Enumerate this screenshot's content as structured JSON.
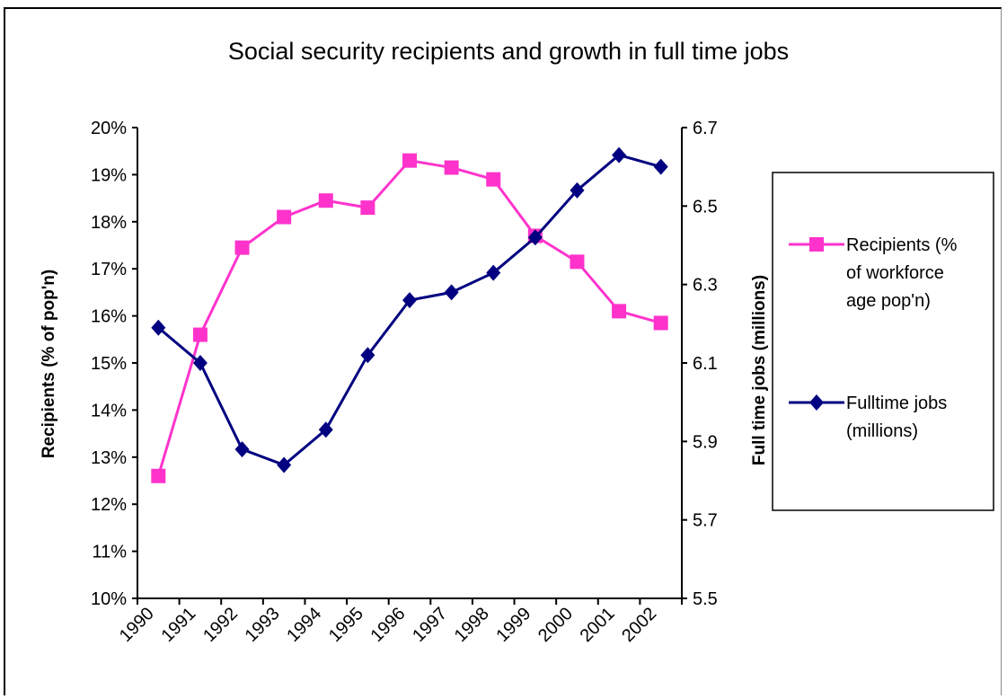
{
  "chart_data": {
    "type": "line",
    "title": "Social security recipients and growth in full time jobs",
    "x": [
      "1990",
      "1991",
      "1992",
      "1993",
      "1994",
      "1995",
      "1996",
      "1997",
      "1998",
      "1999",
      "2000",
      "2001",
      "2002"
    ],
    "y_left": {
      "label": "Recipients (% of pop'n)",
      "ticks": [
        "10%",
        "11%",
        "12%",
        "13%",
        "14%",
        "15%",
        "16%",
        "17%",
        "18%",
        "19%",
        "20%"
      ],
      "range": [
        10,
        20
      ]
    },
    "y_right": {
      "label": "Full time jobs (millions)",
      "ticks": [
        "5.5",
        "5.7",
        "5.9",
        "6.1",
        "6.3",
        "6.5",
        "6.7"
      ],
      "range": [
        5.5,
        6.7
      ]
    },
    "series": [
      {
        "name": "Recipients (% of workforce age pop'n)",
        "legend_lines": [
          "Recipients (%",
          "of workforce",
          "age pop'n)"
        ],
        "axis": "left",
        "marker": "square",
        "color": "#ff33cc",
        "values": [
          12.6,
          15.6,
          17.45,
          18.1,
          18.45,
          18.3,
          19.3,
          19.15,
          18.9,
          17.7,
          17.15,
          16.1,
          15.85
        ]
      },
      {
        "name": "Fulltime jobs (millions)",
        "legend_lines": [
          "Fulltime jobs",
          "(millions)"
        ],
        "axis": "right",
        "marker": "diamond",
        "color": "#000080",
        "values": [
          6.19,
          6.1,
          5.88,
          5.84,
          5.93,
          6.12,
          6.26,
          6.28,
          6.33,
          6.42,
          6.54,
          6.63,
          6.6
        ]
      }
    ],
    "grid": false,
    "legend_position": "right"
  }
}
